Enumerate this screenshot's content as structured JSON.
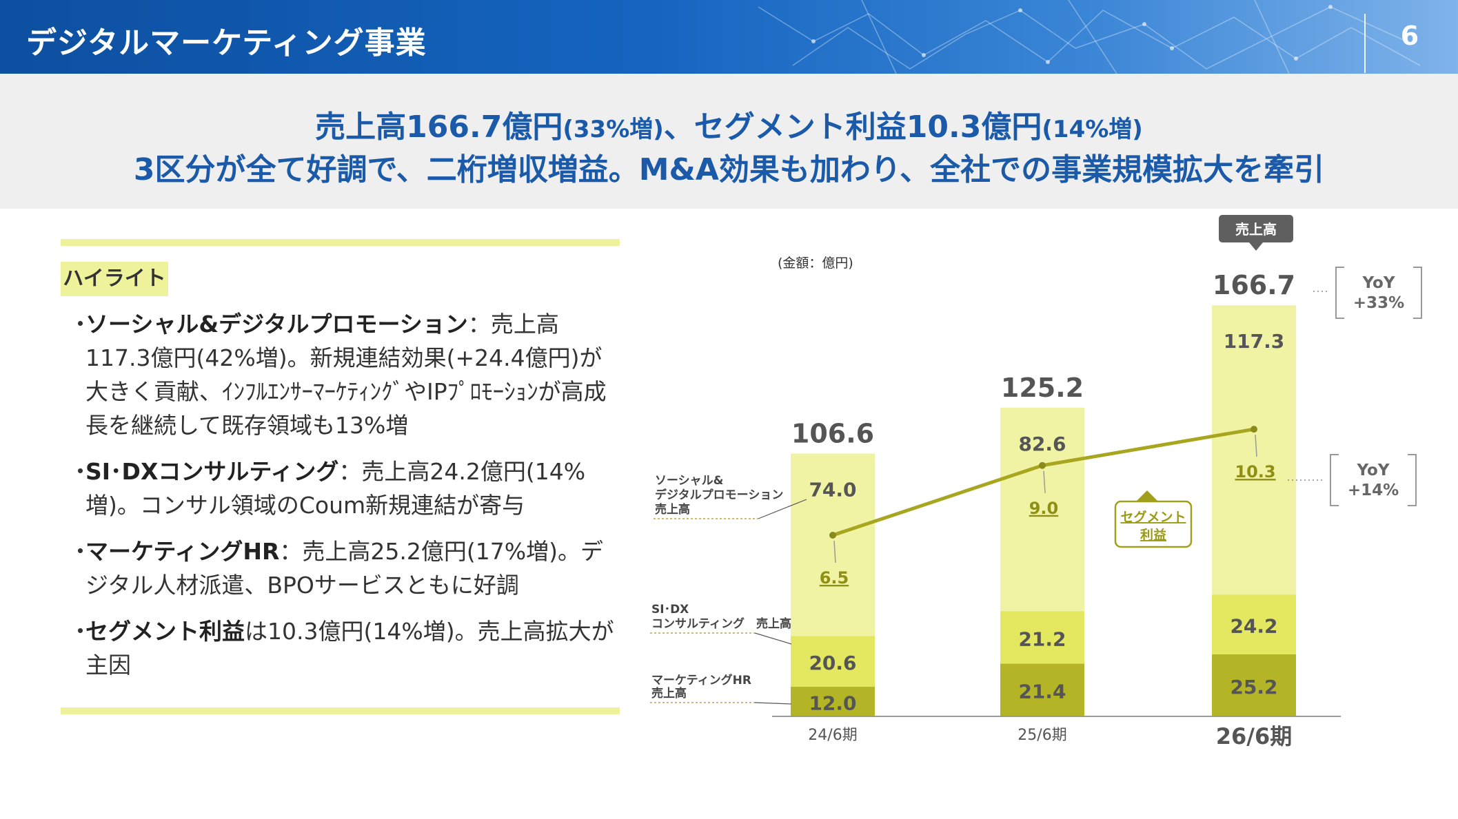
{
  "header": {
    "title": "デジタルマーケティング事業",
    "page_number": "6"
  },
  "headline": {
    "line1_a": "売上高166.7億円",
    "line1_b": "(33%増)",
    "line1_c": "、セグメント利益10.3億円",
    "line1_d": "(14%増)",
    "line2": "3区分が全て好調で、二桁増収増益。M&A効果も加わり、全社での事業規模拡大を牽引"
  },
  "highlight": {
    "tag": "ハイライト",
    "bullets": [
      {
        "dot": "・",
        "bold": "ソーシャル&デジタルプロモーション",
        "text": "：売上高117.3億円(42%増)。新規連結効果(+24.4億円)が大きく貢献、ｲﾝﾌﾙｴﾝｻｰﾏｰｹﾃｨﾝｸﾞやIPﾌﾟﾛﾓｰｼｮﾝが高成長を継続して既存領域も13%増"
      },
      {
        "dot": "・",
        "bold": "SI･DXコンサルティング",
        "text": "：売上高24.2億円(14%増)。コンサル領域のCoum新規連結が寄与"
      },
      {
        "dot": "・",
        "bold": "マーケティングHR",
        "text": "：売上高25.2億円(17%増)。デジタル人材派遣、BPOサービスともに好調"
      },
      {
        "dot": "・",
        "bold": "セグメント利益",
        "text": "は10.3億円(14%増)。売上高拡大が主因"
      }
    ]
  },
  "chart_data": {
    "type": "bar",
    "stacked": true,
    "unit_label": "(金額：億円)",
    "categories": [
      "24/6期",
      "25/6期",
      "26/6期"
    ],
    "series": [
      {
        "name": "マーケティングHR 売上高",
        "label_lines": [
          "マーケティングHR",
          "売上高"
        ],
        "values": [
          12.0,
          21.4,
          25.2
        ],
        "color": "#b4b526"
      },
      {
        "name": "SI･DX コンサルティング 売上高",
        "label_lines": [
          "SI･DX",
          "コンサルティング　売上高"
        ],
        "values": [
          20.6,
          21.2,
          24.2
        ],
        "color": "#e3e860"
      },
      {
        "name": "ソーシャル& デジタルプロモーション 売上高",
        "label_lines": [
          "ソーシャル&",
          "デジタルプロモーション",
          "売上高"
        ],
        "values": [
          74.0,
          82.6,
          117.3
        ],
        "color": "#f1f3a4"
      }
    ],
    "totals": [
      106.6,
      125.2,
      166.7
    ],
    "line_series": {
      "name": "セグメント利益",
      "label_lines": [
        "セグメント",
        "利益"
      ],
      "values": [
        6.5,
        9.0,
        10.3
      ],
      "color": "#a7a61e"
    },
    "total_callout": "売上高",
    "yoy_sales": [
      "YoY",
      "+33%"
    ],
    "yoy_profit": [
      "YoY",
      "+14%"
    ],
    "ylim": [
      0,
      180
    ]
  }
}
